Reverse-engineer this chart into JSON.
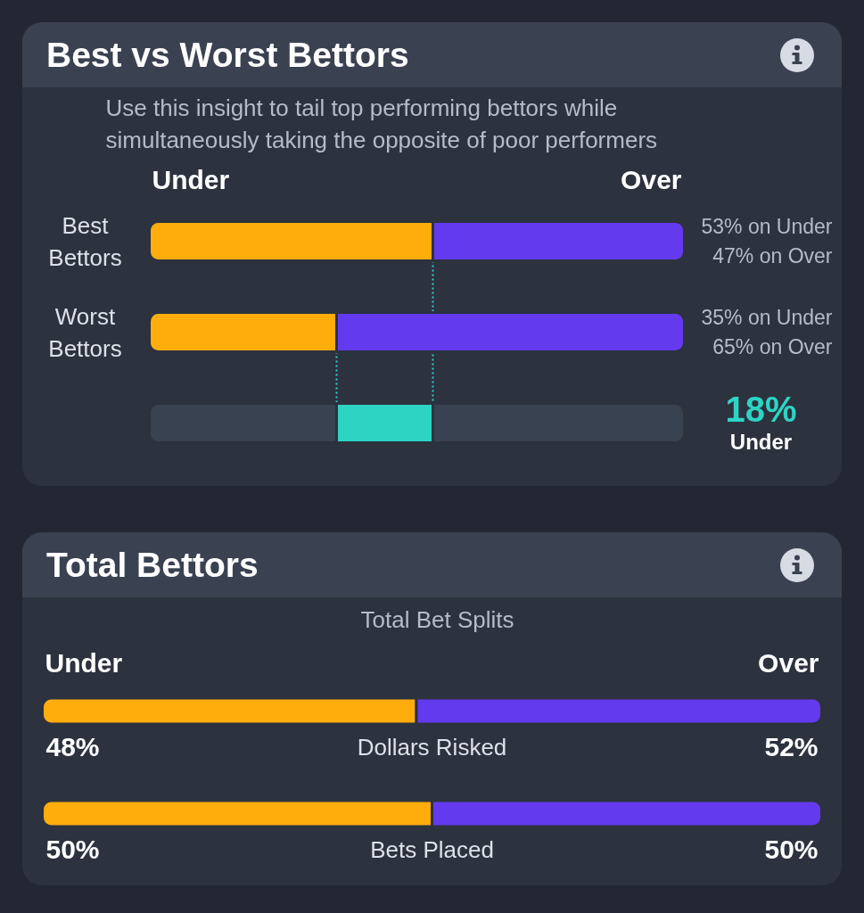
{
  "chart_data": [
    {
      "type": "bar",
      "orientation": "horizontal",
      "stacked": true,
      "title": "Best vs Worst Bettors",
      "subtitle": "Use this insight to tail top performing bettors while simultaneously taking the opposite of poor performers",
      "categories": [
        "Best Bettors",
        "Worst Bettors",
        null
      ],
      "series": [
        {
          "name": "Under",
          "color": "#ffad0d",
          "values": [
            53,
            35,
            null
          ],
          "value_labels": [
            "53% on Under",
            "35% on Under",
            null
          ]
        },
        {
          "name": "Over",
          "color": "#643aee",
          "values": [
            47,
            65,
            null
          ],
          "value_labels": [
            "47% on Over",
            "65% on Over",
            null
          ]
        },
        {
          "color": "#394250",
          "values": [
            null,
            null,
            35
          ]
        },
        {
          "color": "#2dd4c4",
          "values": [
            null,
            null,
            18
          ]
        },
        {
          "color": "#394250",
          "values": [
            null,
            null,
            47
          ]
        }
      ],
      "ref_lines": [
        {
          "axis": "x",
          "value": 53,
          "color": "#2dd4c4",
          "line_style": "dotted"
        },
        {
          "axis": "x",
          "value": 35,
          "color": "#2dd4c4",
          "line_style": "dotted"
        }
      ],
      "annotations": [
        "18%",
        "Under"
      ]
    },
    {
      "type": "bar",
      "orientation": "horizontal",
      "stacked": true,
      "title": "Total Bettors",
      "subtitle": "Total Bet Splits",
      "categories": [
        "Dollars Risked",
        "Bets Placed"
      ],
      "series": [
        {
          "name": "Under",
          "color": "#ffad0d",
          "values": [
            48,
            50
          ],
          "value_labels": [
            "48%",
            "50%"
          ]
        },
        {
          "name": "Over",
          "color": "#643aee",
          "values": [
            52,
            50
          ],
          "value_labels": [
            "52%",
            "50%"
          ]
        }
      ]
    }
  ]
}
